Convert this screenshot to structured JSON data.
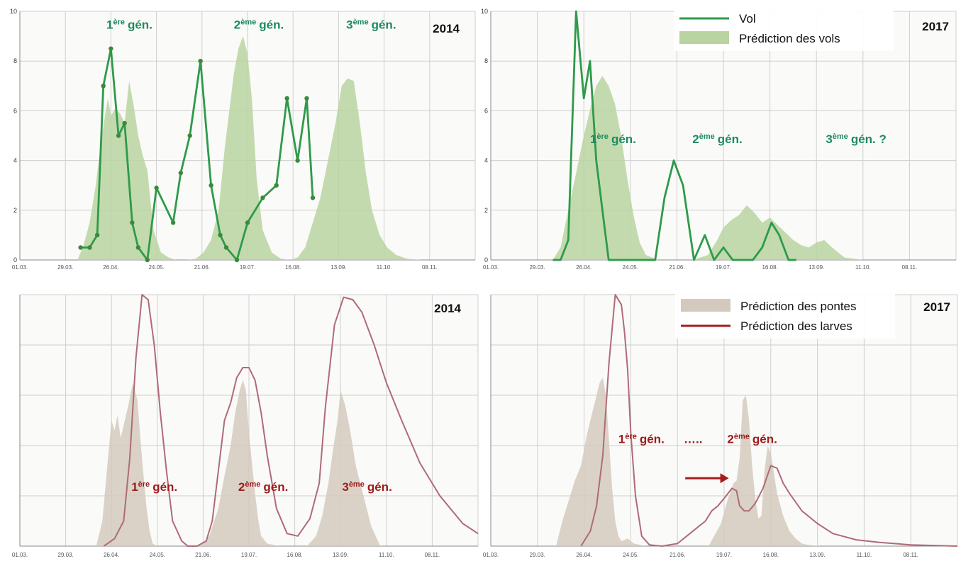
{
  "colors": {
    "vol_line": "#2e9a4a",
    "vol_point": "#3a8a3a",
    "vol_area": "#b9d3a1",
    "larves_line": "#b06a78",
    "pontes_area": "#d3cabd",
    "label_green": "#1e8a5f",
    "label_red": "#9b1c1c",
    "grid": "#cfcfcf"
  },
  "chart_data": [
    {
      "id": "vols-2014",
      "type": "line",
      "year_label": "2014",
      "x_tick_labels": [
        "01.03.",
        "29.03.",
        "26.04.",
        "24.05.",
        "21.06.",
        "19.07.",
        "16.08.",
        "13.09.",
        "11.10.",
        "08.11."
      ],
      "xlim": [
        0,
        300
      ],
      "ylim": [
        0,
        10
      ],
      "y_ticks": [
        "0",
        "2",
        "4",
        "6",
        "8",
        "10"
      ],
      "grid": true,
      "annotations": [
        {
          "label": "gén.",
          "prefix": "1",
          "sup": "ère",
          "x": 57,
          "y": 9.3
        },
        {
          "label": "gén.",
          "prefix": "2",
          "sup": "ème",
          "x": 141,
          "y": 9.3
        },
        {
          "label": "gén.",
          "prefix": "3",
          "sup": "ème",
          "x": 215,
          "y": 9.3
        }
      ],
      "series": [
        {
          "kind": "area",
          "x": [
            38,
            42,
            46,
            50,
            54,
            58,
            60,
            63,
            66,
            69,
            72,
            75,
            78,
            81,
            84,
            88,
            93,
            98,
            103,
            110,
            116,
            121,
            126,
            131,
            135,
            138,
            141,
            144,
            147,
            150,
            153,
            156,
            160,
            166,
            172,
            178,
            183,
            188,
            193,
            198,
            203,
            208,
            212,
            216,
            220,
            224,
            228,
            232,
            237,
            242,
            248,
            255,
            265,
            280
          ],
          "values": [
            0,
            0.6,
            1.5,
            3,
            5,
            6.5,
            5.8,
            6.1,
            5.9,
            5.5,
            7.2,
            6.2,
            5,
            4.2,
            3.6,
            1.2,
            0.3,
            0.1,
            0,
            0,
            0.05,
            0.3,
            0.8,
            2,
            4.5,
            6,
            7.5,
            8.5,
            9,
            8.3,
            6.4,
            3.3,
            1.2,
            0.3,
            0.05,
            0,
            0.1,
            0.5,
            1.5,
            2.5,
            4,
            5.5,
            7,
            7.3,
            7.2,
            5.5,
            3.5,
            2,
            1,
            0.5,
            0.2,
            0.05,
            0,
            0
          ]
        },
        {
          "kind": "line",
          "x": [
            40,
            46,
            51,
            55,
            60,
            65,
            69,
            74,
            78,
            84,
            90,
            101,
            106,
            112,
            119,
            126,
            132,
            136,
            143,
            150,
            160,
            169,
            176,
            183,
            189,
            193,
            197,
            201,
            205,
            212
          ],
          "values": [
            0.5,
            0.5,
            1,
            7,
            8.5,
            5,
            5.5,
            1.5,
            0.5,
            0,
            2.9,
            1.5,
            3.5,
            5,
            8,
            3,
            1,
            0.5,
            0,
            1.5,
            2.5,
            3,
            6.5,
            4,
            6.5,
            2.5,
            null,
            null,
            null,
            null
          ]
        }
      ]
    },
    {
      "id": "vols-2017",
      "type": "line",
      "year_label": "2017",
      "x_tick_labels": [
        "01.03.",
        "29.03.",
        "26.04.",
        "24.05.",
        "21.06.",
        "19.07.",
        "16.08.",
        "13.09.",
        "11.10.",
        "08.11."
      ],
      "xlim": [
        0,
        300
      ],
      "ylim": [
        0,
        10
      ],
      "y_ticks": [
        "0",
        "2",
        "4",
        "6",
        "8",
        "10"
      ],
      "grid": true,
      "legend": [
        {
          "label": "Vol",
          "kind": "line"
        },
        {
          "label": "Prédiction des vols",
          "kind": "area"
        }
      ],
      "annotations": [
        {
          "label": "gén.",
          "prefix": "1",
          "sup": "ère",
          "x": 64,
          "y": 4.7
        },
        {
          "label": "gén.",
          "prefix": "2",
          "sup": "ème",
          "x": 130,
          "y": 4.7
        },
        {
          "label": "gén. ?",
          "prefix": "3",
          "sup": "ème",
          "x": 216,
          "y": 4.7
        }
      ],
      "series": [
        {
          "kind": "area",
          "x": [
            40,
            45,
            50,
            55,
            60,
            65,
            68,
            72,
            76,
            80,
            84,
            88,
            92,
            96,
            100,
            108,
            120,
            130,
            140,
            146,
            150,
            155,
            160,
            165,
            170,
            175,
            180,
            185,
            190,
            195,
            200,
            205,
            210,
            215,
            220,
            228,
            240,
            260
          ],
          "values": [
            0,
            0.5,
            2,
            3.5,
            5,
            6.3,
            7,
            7.4,
            7,
            6.3,
            5,
            3.3,
            1.8,
            0.7,
            0.2,
            0,
            0,
            0,
            0.2,
            0.8,
            1.3,
            1.6,
            1.8,
            2.2,
            1.9,
            1.5,
            1.7,
            1.4,
            1.1,
            0.8,
            0.6,
            0.5,
            0.7,
            0.8,
            0.5,
            0.1,
            0,
            0
          ]
        },
        {
          "kind": "line",
          "x": [
            40,
            45,
            50,
            55,
            60,
            64,
            68,
            72,
            76,
            80,
            89,
            94,
            99,
            106,
            112,
            118,
            124,
            131,
            138,
            144,
            150,
            156,
            163,
            169,
            175,
            181,
            186,
            192,
            197
          ],
          "values": [
            0,
            0,
            0.8,
            10,
            6.5,
            8,
            4,
            2,
            0,
            0,
            0,
            0,
            0,
            0,
            2.5,
            4,
            3,
            0,
            1,
            0,
            0.5,
            0,
            0,
            0,
            0.5,
            1.5,
            1,
            0,
            0
          ]
        }
      ]
    },
    {
      "id": "larves-2014",
      "type": "area",
      "year_label": "2014",
      "x_tick_labels": [
        "01.03.",
        "29.03.",
        "26.04.",
        "24.05.",
        "21.06.",
        "19.07.",
        "16.08.",
        "13.09.",
        "11.10.",
        "08.11."
      ],
      "xlim": [
        0,
        300
      ],
      "ylim": [
        0,
        10
      ],
      "grid": true,
      "annotations": [
        {
          "label": "gén.",
          "prefix": "1",
          "sup": "ère",
          "x": 73,
          "y": 2.2
        },
        {
          "label": "gén.",
          "prefix": "2",
          "sup": "ème",
          "x": 143,
          "y": 2.2
        },
        {
          "label": "gén.",
          "prefix": "3",
          "sup": "ème",
          "x": 211,
          "y": 2.2
        }
      ],
      "series": [
        {
          "kind": "area",
          "x": [
            50,
            54,
            57,
            60,
            62,
            64,
            66,
            68,
            71,
            74,
            77,
            79,
            81,
            83,
            85,
            87,
            90,
            96,
            108,
            118,
            124,
            130,
            134,
            138,
            141,
            144,
            146,
            148,
            150,
            152,
            154,
            156,
            158,
            162,
            170,
            180,
            188,
            194,
            198,
            202,
            205,
            208,
            210,
            213,
            216,
            220,
            225,
            230,
            236
          ],
          "values": [
            0,
            1,
            3,
            5,
            4.6,
            5.2,
            4.3,
            4.8,
            5.6,
            6.5,
            5.8,
            4.2,
            2.8,
            1.5,
            0.6,
            0.1,
            0,
            0,
            0,
            0,
            0.4,
            1.5,
            2.8,
            4,
            5.3,
            6.2,
            6.6,
            6.2,
            4.5,
            3.3,
            2.1,
            1.1,
            0.4,
            0.1,
            0,
            0,
            0,
            0.4,
            1.2,
            2.5,
            3.8,
            5,
            6.2,
            5.6,
            4.7,
            3.2,
            2,
            0.8,
            0
          ]
        },
        {
          "kind": "line",
          "x": [
            55,
            62,
            68,
            72,
            76,
            80,
            84,
            88,
            92,
            96,
            100,
            106,
            110,
            116,
            122,
            126,
            130,
            134,
            138,
            142,
            146,
            150,
            154,
            158,
            162,
            168,
            175,
            182,
            190,
            196,
            200,
            206,
            212,
            218,
            224,
            232,
            240,
            250,
            262,
            275,
            290,
            300
          ],
          "values": [
            0,
            0.3,
            1,
            3.5,
            7.5,
            10,
            9.8,
            8,
            5.3,
            3,
            1,
            0.2,
            0,
            0,
            0.2,
            1,
            3,
            5,
            5.7,
            6.7,
            7.1,
            7.1,
            6.6,
            5.3,
            3.6,
            1.5,
            0.5,
            0.4,
            1.1,
            2.5,
            5.5,
            8.8,
            9.9,
            9.8,
            9.3,
            8,
            6.5,
            5,
            3.3,
            2,
            0.9,
            0.5
          ]
        }
      ]
    },
    {
      "id": "larves-2017",
      "type": "area",
      "year_label": "2017",
      "x_tick_labels": [
        "01.03.",
        "29.03.",
        "26.04.",
        "24.05.",
        "21.06.",
        "19.07.",
        "16.08.",
        "13.09.",
        "11.10.",
        "08.11."
      ],
      "xlim": [
        0,
        300
      ],
      "ylim": [
        0,
        10
      ],
      "grid": true,
      "legend": [
        {
          "label": "Prédiction des pontes",
          "kind": "area"
        },
        {
          "label": "Prédiction des larves",
          "kind": "line"
        }
      ],
      "annotations": [
        {
          "label": "gén.",
          "prefix": "1",
          "sup": "ère",
          "x": 82,
          "y": 4.1
        },
        {
          "label": "…..",
          "prefix": "",
          "sup": "",
          "x": 124,
          "y": 4.1
        },
        {
          "label": "gén.",
          "prefix": "2",
          "sup": "ème",
          "x": 152,
          "y": 4.1
        }
      ],
      "arrow": {
        "x1": 125,
        "x2": 153,
        "y": 2.7
      },
      "series": [
        {
          "kind": "area",
          "x": [
            42,
            46,
            50,
            54,
            58,
            62,
            66,
            70,
            72,
            74,
            76,
            78,
            80,
            82,
            84,
            88,
            92,
            100,
            120,
            140,
            148,
            152,
            156,
            158,
            160,
            162,
            164,
            166,
            168,
            170,
            172,
            174,
            176,
            178,
            180,
            184,
            188,
            192,
            196,
            200,
            204,
            212
          ],
          "values": [
            0,
            1,
            1.8,
            2.6,
            3.2,
            4.5,
            5.5,
            6.5,
            6.7,
            6,
            4.2,
            2.3,
            1,
            0.4,
            0.2,
            0.3,
            0.1,
            0,
            0,
            0,
            0.9,
            1.8,
            2.5,
            2.6,
            3.5,
            5.8,
            6,
            5,
            3.2,
            1.9,
            1.1,
            1.2,
            3,
            4,
            3.7,
            2.1,
            1.2,
            0.6,
            0.3,
            0.1,
            0.05,
            0
          ]
        },
        {
          "kind": "line",
          "x": [
            58,
            64,
            68,
            72,
            76,
            80,
            84,
            86,
            88,
            90,
            93,
            97,
            102,
            110,
            120,
            130,
            138,
            142,
            146,
            150,
            155,
            158,
            160,
            163,
            166,
            170,
            175,
            180,
            184,
            188,
            192,
            200,
            210,
            220,
            235,
            250,
            270,
            300
          ],
          "values": [
            0,
            0.6,
            1.6,
            3.6,
            7.3,
            10,
            9.6,
            8.5,
            7,
            4.5,
            2,
            0.4,
            0.05,
            0,
            0.1,
            0.6,
            1,
            1.4,
            1.6,
            1.9,
            2.3,
            2.2,
            1.6,
            1.4,
            1.4,
            1.7,
            2.3,
            3.2,
            3.1,
            2.5,
            2.1,
            1.4,
            0.9,
            0.5,
            0.25,
            0.15,
            0.05,
            0
          ]
        }
      ]
    }
  ]
}
